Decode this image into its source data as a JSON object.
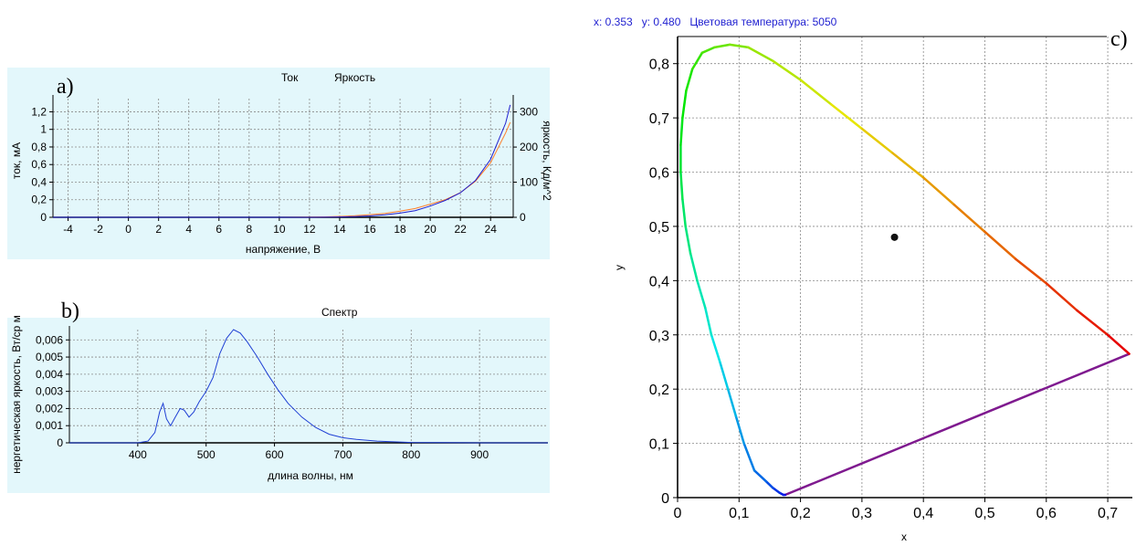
{
  "panels": {
    "a": "a)",
    "b": "b)",
    "c": "c)"
  },
  "colors": {
    "plot_bg": "#e3f7fb",
    "grid": "#8a8a8a",
    "current": "#ff7f2a",
    "brightness": "#1f1fcf",
    "spectrum": "#1f3fd4",
    "purple_line": "#7f1a8f",
    "point": "#111111"
  },
  "chart_data": [
    {
      "id": "iv",
      "type": "line",
      "legend": [
        "Ток",
        "Яркость"
      ],
      "xlabel": "напряжение, В",
      "ylabel": "ток, мА",
      "y2label": "яркость, Кд/м^2",
      "xlim": [
        -5,
        25.5
      ],
      "ylim": [
        0,
        1.35
      ],
      "y2lim": [
        0,
        338
      ],
      "x_ticks": [
        "-4",
        "-2",
        "0",
        "2",
        "4",
        "6",
        "8",
        "10",
        "12",
        "14",
        "16",
        "18",
        "20",
        "22",
        "24"
      ],
      "x_tick_values": [
        -4,
        -2,
        0,
        2,
        4,
        6,
        8,
        10,
        12,
        14,
        16,
        18,
        20,
        22,
        24
      ],
      "y_ticks": [
        "0",
        "0,2",
        "0,4",
        "0,6",
        "0,8",
        "1",
        "1,2"
      ],
      "y_tick_values": [
        0,
        0.2,
        0.4,
        0.6,
        0.8,
        1.0,
        1.2
      ],
      "y2_ticks": [
        "0",
        "100",
        "200",
        "300"
      ],
      "y2_tick_values": [
        0,
        100,
        200,
        300
      ],
      "series": [
        {
          "name": "Ток",
          "axis": "left",
          "x": [
            -5,
            10,
            12,
            13,
            14,
            15,
            16,
            17,
            18,
            19,
            20,
            21,
            22,
            23,
            24,
            25,
            25.3
          ],
          "y": [
            0,
            0,
            0.002,
            0.005,
            0.01,
            0.018,
            0.03,
            0.045,
            0.07,
            0.1,
            0.15,
            0.2,
            0.28,
            0.41,
            0.62,
            0.96,
            1.08
          ]
        },
        {
          "name": "Яркость",
          "axis": "right",
          "x": [
            -5,
            12,
            14,
            15,
            16,
            17,
            18,
            19,
            20,
            21,
            22,
            23,
            24,
            25,
            25.3
          ],
          "y": [
            0,
            0,
            1,
            2,
            4,
            7,
            12,
            19,
            32,
            48,
            70,
            105,
            165,
            268,
            320
          ]
        }
      ]
    },
    {
      "id": "spectrum",
      "type": "line",
      "legend": [
        "Спектр"
      ],
      "xlabel": "длина волны, нм",
      "ylabel": "нергетическая яркость, Вт/ср м",
      "xlim": [
        300,
        1000
      ],
      "ylim": [
        0,
        0.0066
      ],
      "x_ticks": [
        "400",
        "500",
        "600",
        "700",
        "800",
        "900"
      ],
      "x_tick_values": [
        400,
        500,
        600,
        700,
        800,
        900
      ],
      "y_ticks": [
        "0",
        "0,001",
        "0,002",
        "0,003",
        "0,004",
        "0,005",
        "0,006"
      ],
      "y_tick_values": [
        0,
        0.001,
        0.002,
        0.003,
        0.004,
        0.005,
        0.006
      ],
      "series": [
        {
          "name": "Спектр",
          "x": [
            300,
            380,
            400,
            415,
            425,
            432,
            437,
            442,
            448,
            455,
            462,
            468,
            475,
            482,
            490,
            500,
            510,
            520,
            530,
            540,
            550,
            560,
            575,
            590,
            605,
            620,
            640,
            660,
            680,
            700,
            720,
            750,
            800,
            900,
            1000
          ],
          "y": [
            0,
            0,
            0,
            0.0001,
            0.0006,
            0.0018,
            0.0023,
            0.0014,
            0.001,
            0.0015,
            0.002,
            0.0019,
            0.0015,
            0.0018,
            0.0024,
            0.003,
            0.0038,
            0.0052,
            0.0061,
            0.0066,
            0.0064,
            0.0059,
            0.005,
            0.004,
            0.0031,
            0.0023,
            0.0015,
            0.0009,
            0.0005,
            0.0003,
            0.0002,
            0.0001,
            2e-05,
            0,
            0
          ]
        }
      ]
    },
    {
      "id": "cie",
      "type": "line",
      "readout": "x: 0.353   y: 0.480   Цветовая температура: 5050",
      "xlabel": "x",
      "ylabel": "y",
      "xlim": [
        0,
        0.74
      ],
      "ylim": [
        0,
        0.85
      ],
      "x_ticks": [
        "0",
        "0,1",
        "0,2",
        "0,3",
        "0,4",
        "0,5",
        "0,6",
        "0,7"
      ],
      "x_tick_values": [
        0,
        0.1,
        0.2,
        0.3,
        0.4,
        0.5,
        0.6,
        0.7
      ],
      "y_ticks": [
        "0",
        "0,1",
        "0,2",
        "0,3",
        "0,4",
        "0,5",
        "0,6",
        "0,7",
        "0,8"
      ],
      "y_tick_values": [
        0,
        0.1,
        0.2,
        0.3,
        0.4,
        0.5,
        0.6,
        0.7,
        0.8
      ],
      "locus": {
        "x": [
          0.175,
          0.172,
          0.166,
          0.155,
          0.144,
          0.125,
          0.108,
          0.095,
          0.082,
          0.069,
          0.055,
          0.045,
          0.032,
          0.021,
          0.013,
          0.008,
          0.005,
          0.005,
          0.008,
          0.014,
          0.024,
          0.04,
          0.06,
          0.085,
          0.115,
          0.155,
          0.2,
          0.25,
          0.3,
          0.35,
          0.4,
          0.45,
          0.5,
          0.55,
          0.6,
          0.65,
          0.7,
          0.735
        ],
        "y": [
          0.005,
          0.005,
          0.009,
          0.018,
          0.03,
          0.05,
          0.1,
          0.15,
          0.2,
          0.25,
          0.3,
          0.35,
          0.4,
          0.45,
          0.5,
          0.55,
          0.6,
          0.65,
          0.7,
          0.75,
          0.79,
          0.82,
          0.83,
          0.835,
          0.83,
          0.805,
          0.77,
          0.725,
          0.68,
          0.635,
          0.59,
          0.54,
          0.49,
          0.44,
          0.395,
          0.345,
          0.3,
          0.265
        ]
      },
      "purple_line": {
        "x": [
          0.175,
          0.735
        ],
        "y": [
          0.005,
          0.265
        ]
      },
      "point": {
        "x": 0.353,
        "y": 0.48
      }
    }
  ]
}
